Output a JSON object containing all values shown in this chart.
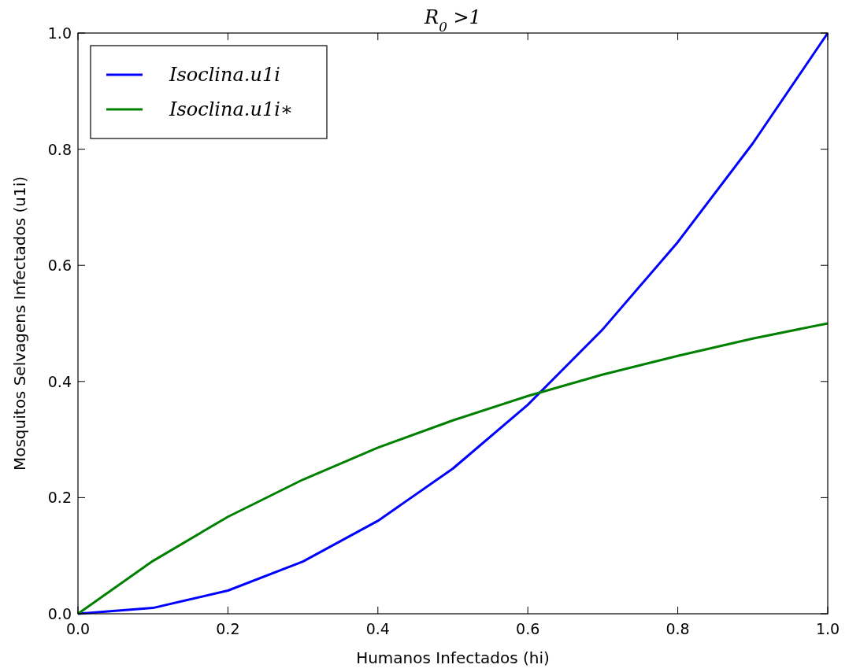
{
  "chart_data": {
    "type": "line",
    "title": "R$_{0}$ >1",
    "xlabel": "Humanos Infectados (hi)",
    "ylabel": "Mosquitos Selvagens Infectados (u1i)",
    "x": [
      0,
      0.1,
      0.2,
      0.3,
      0.4,
      0.5,
      0.6,
      0.7,
      0.8,
      0.9,
      1.0
    ],
    "series": [
      {
        "name": "Isoclina.u1i",
        "color": "#0000ff",
        "values": [
          0,
          0.01,
          0.04,
          0.09,
          0.16,
          0.25,
          0.36,
          0.49,
          0.64,
          0.81,
          1.0
        ]
      },
      {
        "name": "Isoclina.u1i∗",
        "color": "#008000",
        "values": [
          0,
          0.091,
          0.167,
          0.231,
          0.286,
          0.333,
          0.375,
          0.412,
          0.444,
          0.474,
          0.5
        ]
      }
    ],
    "xlim": [
      0,
      1
    ],
    "ylim": [
      0,
      1
    ],
    "xticks": [
      {
        "value": 0,
        "label": "0.0"
      },
      {
        "value": 0.2,
        "label": "0.2"
      },
      {
        "value": 0.4,
        "label": "0.4"
      },
      {
        "value": 0.6,
        "label": "0.6"
      },
      {
        "value": 0.8,
        "label": "0.8"
      },
      {
        "value": 1,
        "label": "1.0"
      }
    ],
    "yticks": [
      {
        "value": 0,
        "label": "0.0"
      },
      {
        "value": 0.2,
        "label": "0.2"
      },
      {
        "value": 0.4,
        "label": "0.4"
      },
      {
        "value": 0.6,
        "label": "0.6"
      },
      {
        "value": 0.8,
        "label": "0.8"
      },
      {
        "value": 1,
        "label": "1.0"
      }
    ],
    "legend": "top left",
    "grid": false,
    "marker": "none",
    "line_style": "solid"
  }
}
